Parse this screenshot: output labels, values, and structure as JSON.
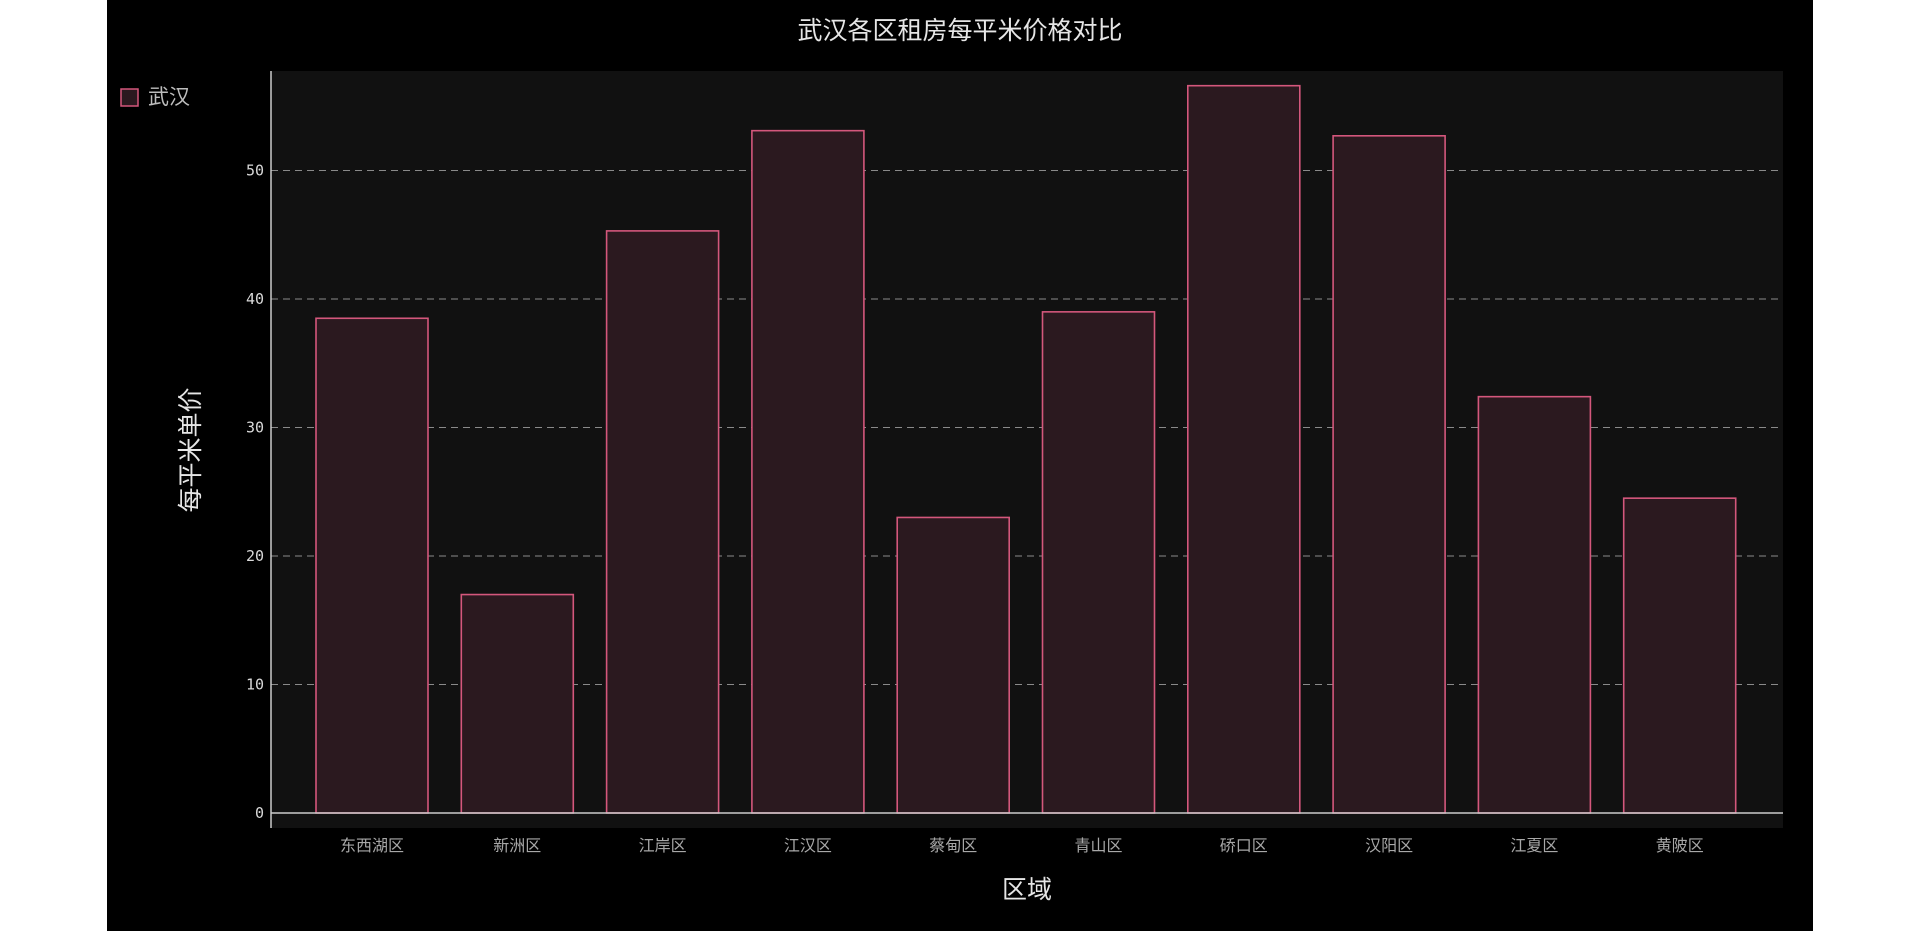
{
  "chart_data": {
    "type": "bar",
    "title": "武汉各区租房每平米价格对比",
    "xlabel": "区域",
    "ylabel": "每平米单价",
    "categories": [
      "东西湖区",
      "新洲区",
      "江岸区",
      "江汉区",
      "蔡甸区",
      "青山区",
      "硚口区",
      "汉阳区",
      "江夏区",
      "黄陂区"
    ],
    "series": [
      {
        "name": "武汉",
        "values": [
          38.5,
          17.0,
          45.3,
          53.1,
          23.0,
          39.0,
          56.6,
          52.7,
          32.4,
          24.5
        ]
      }
    ],
    "ylim": [
      0,
      57.5
    ],
    "yticks": [
      "0",
      "10",
      "20",
      "30",
      "40",
      "50"
    ],
    "grid": "horizontal-dashed",
    "legend_position": "top-left",
    "colors": {
      "frame_background": "#000000",
      "plot_background": "#111111",
      "bar_fill": "#2b191f",
      "bar_stroke": "#d4577c",
      "gridline": "#8a8a8a",
      "axis": "#cccccc"
    }
  }
}
